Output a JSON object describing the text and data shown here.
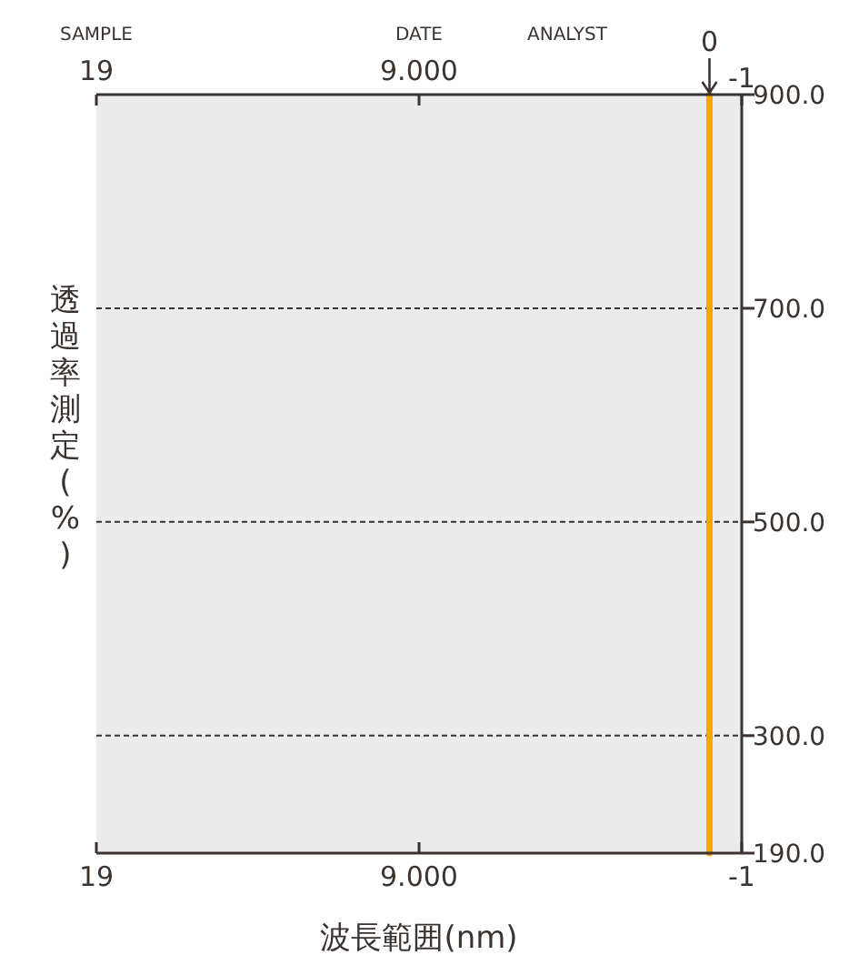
{
  "chart_data": {
    "type": "line",
    "xlabel": "波長範囲(nm)",
    "ylabel": "透過率測定(%)",
    "annotations": [
      "SAMPLE",
      "DATE",
      "ANALYST",
      {
        "text": "0",
        "x": 0,
        "y": 900
      }
    ],
    "series": [
      {
        "color": "#f5a800",
        "x": [
          0,
          0
        ],
        "values": [
          190,
          900
        ]
      }
    ],
    "xlim": [
      19,
      -1
    ],
    "xticks": [
      19,
      {
        "value": 9,
        "label": "9.000"
      },
      -1
    ],
    "x2lim": [
      19,
      -1
    ],
    "x2ticks": [
      19,
      {
        "value": 9,
        "label": "9.000"
      },
      -1
    ],
    "ylim": [
      190,
      900
    ],
    "yticks": [
      {
        "value": 190,
        "label": "190.0"
      },
      {
        "value": 300,
        "label": "300.0"
      },
      {
        "value": 500,
        "label": "500.0"
      },
      {
        "value": 700,
        "label": "700.0"
      },
      {
        "value": 900,
        "label": "900.0"
      }
    ],
    "grid": "y",
    "marker": "none",
    "line_style": "solid"
  }
}
